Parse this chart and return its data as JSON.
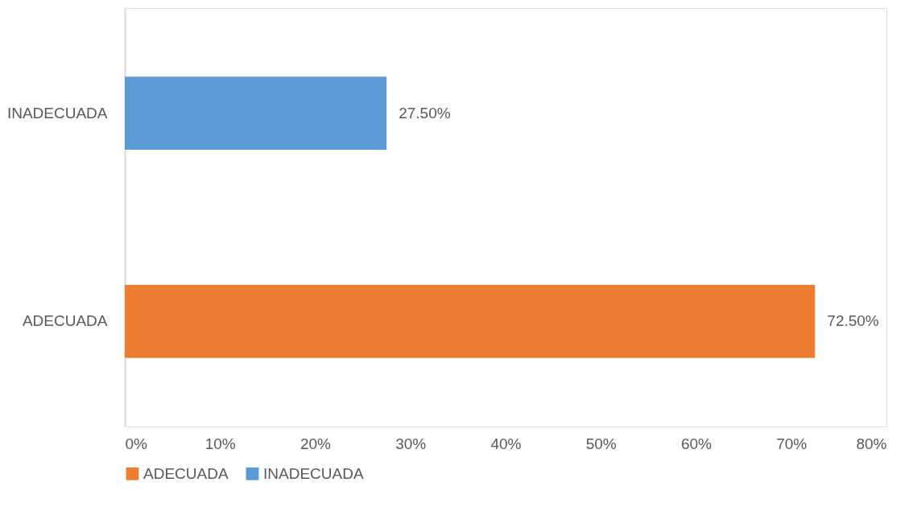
{
  "chart_data": {
    "type": "bar",
    "orientation": "horizontal",
    "categories": [
      "INADECUADA",
      "ADECUADA"
    ],
    "series": [
      {
        "name": "ADECUADA",
        "color": "#ed7d31",
        "values": [
          null,
          72.5
        ],
        "value_labels": [
          null,
          "72.50%"
        ]
      },
      {
        "name": "INADECUADA",
        "color": "#5b9bd5",
        "values": [
          27.5,
          null
        ],
        "value_labels": [
          "27.50%",
          null
        ]
      }
    ],
    "xlim": [
      0,
      80
    ],
    "xticks": [
      {
        "value": 0,
        "label": "0%"
      },
      {
        "value": 10,
        "label": "10%"
      },
      {
        "value": 20,
        "label": "20%"
      },
      {
        "value": 30,
        "label": "30%"
      },
      {
        "value": 40,
        "label": "40%"
      },
      {
        "value": 50,
        "label": "50%"
      },
      {
        "value": 60,
        "label": "60%"
      },
      {
        "value": 70,
        "label": "70%"
      },
      {
        "value": 80,
        "label": "80%"
      }
    ],
    "grid": false,
    "legend": "bottom"
  }
}
